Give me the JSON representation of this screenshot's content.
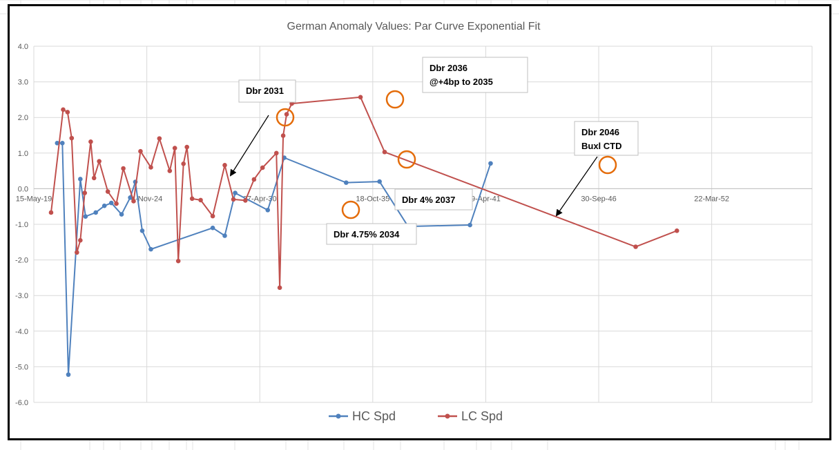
{
  "chart_data": {
    "type": "line",
    "title": "German Anomaly Values: Par Curve Exponential Fit",
    "xlabel": "",
    "ylabel": "",
    "ylim": [
      -6.0,
      4.0
    ],
    "y_ticks": [
      "4.0",
      "3.0",
      "2.0",
      "1.0",
      "0.0",
      "-1.0",
      "-2.0",
      "-3.0",
      "-4.0",
      "-5.0",
      "-6.0"
    ],
    "x_tick_labels": [
      "15-May-19",
      "4-Nov-24",
      "27-Apr-30",
      "18-Oct-35",
      "9-Apr-41",
      "30-Sep-46",
      "22-Mar-52"
    ],
    "grid": true,
    "legend_position": "bottom",
    "series": [
      {
        "name": "HC Spd",
        "color": "#4f81bd",
        "x": [
          "2020-07-01",
          "2020-10-01",
          "2021-01-15",
          "2021-08-15",
          "2021-11-15",
          "2022-05-15",
          "2022-10-15",
          "2023-02-15",
          "2023-08-15",
          "2024-01-15",
          "2024-04-15",
          "2024-08-15",
          "2025-01-15",
          "2028-01-15",
          "2028-08-15",
          "2029-02-15",
          "2030-09-15",
          "2031-07-04",
          "2034-07-04",
          "2036-02-15",
          "2037-07-04",
          "2040-07-04",
          "2041-07-04",
          "2043-08-15",
          "2045-08-15",
          "2046-08-15"
        ],
        "y": [
          1.28,
          1.28,
          -5.22,
          0.27,
          -0.78,
          -0.67,
          -0.48,
          -0.4,
          -0.72,
          -0.25,
          0.19,
          -1.18,
          -1.7,
          -1.1,
          -1.32,
          -0.12,
          -0.6,
          0.87,
          0.17,
          0.2,
          -1.06,
          -1.02,
          0.71,
          null,
          null,
          null
        ]
      },
      {
        "name": "LC Spd",
        "color": "#c0504d",
        "x": [
          "2020-03-15",
          "2020-10-15",
          "2021-01-01",
          "2021-03-15",
          "2021-06-15",
          "2021-08-15",
          "2021-11-01",
          "2022-02-15",
          "2022-04-15",
          "2022-07-15",
          "2022-12-15",
          "2023-05-15",
          "2023-09-15",
          "2024-03-15",
          "2024-07-15",
          "2025-01-15",
          "2025-06-15",
          "2025-12-15",
          "2026-03-15",
          "2026-05-15",
          "2026-08-15",
          "2026-10-15",
          "2027-01-15",
          "2027-06-15",
          "2028-01-15",
          "2028-08-15",
          "2029-01-15",
          "2029-08-15",
          "2030-01-15",
          "2030-06-15",
          "2031-02-15",
          "2031-04-15",
          "2031-06-15",
          "2031-08-15",
          "2031-11-15",
          "2035-03-15",
          "2036-05-15",
          "2048-07-15",
          "2050-07-15",
          "2056-10-15"
        ],
        "y": [
          -0.67,
          2.22,
          2.15,
          1.42,
          -1.79,
          -1.45,
          -0.12,
          1.32,
          0.3,
          0.77,
          -0.08,
          -0.42,
          0.57,
          -0.35,
          1.05,
          0.6,
          1.41,
          0.5,
          1.14,
          -2.03,
          0.7,
          1.17,
          -0.28,
          -0.32,
          -0.77,
          0.66,
          -0.3,
          -0.33,
          0.26,
          0.59,
          1.0,
          -2.78,
          1.49,
          2.09,
          2.39,
          2.57,
          1.03,
          -1.63,
          -1.18,
          null
        ]
      }
    ],
    "annotations": [
      {
        "label_lines": [
          "Dbr 2031"
        ]
      },
      {
        "label_lines": [
          "Dbr 2036",
          "@+4bp to 2035"
        ]
      },
      {
        "label_lines": [
          "Dbr 2046",
          "Buxl CTD"
        ]
      },
      {
        "label_lines": [
          "Dbr 4.75% 2034"
        ]
      },
      {
        "label_lines": [
          "Dbr 4% 2037"
        ]
      }
    ],
    "highlight_color": "#e46c0a"
  }
}
